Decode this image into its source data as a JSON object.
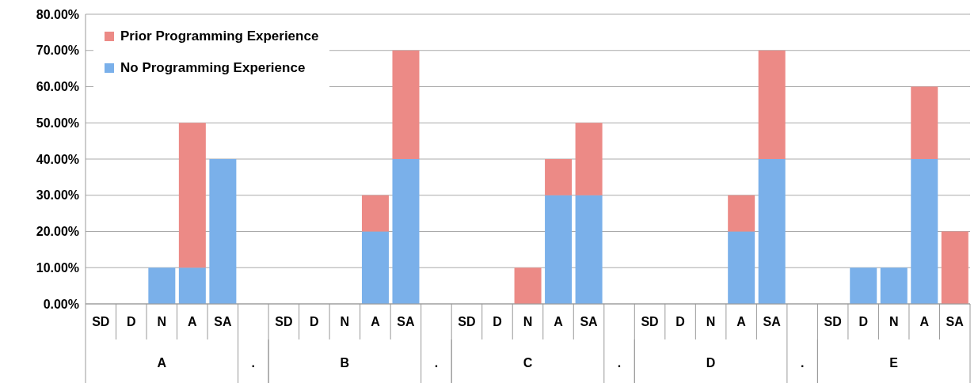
{
  "chart_data": {
    "type": "bar",
    "stacked": true,
    "categories": [
      "SD",
      "D",
      "N",
      "A",
      "SA",
      null,
      "SD",
      "D",
      "N",
      "A",
      "SA",
      null,
      "SD",
      "D",
      "N",
      "A",
      "SA",
      null,
      "SD",
      "D",
      "N",
      "A",
      "SA",
      null,
      "SD",
      "D",
      "N",
      "A",
      "SA"
    ],
    "series": [
      {
        "name": "No Programming Experience",
        "color": "#7ab0ea",
        "values": [
          0,
          0,
          10,
          10,
          40,
          null,
          0,
          0,
          0,
          20,
          40,
          null,
          0,
          0,
          0,
          30,
          30,
          null,
          0,
          0,
          0,
          20,
          40,
          null,
          0,
          10,
          10,
          40,
          0
        ]
      },
      {
        "name": "Prior Programming Experience",
        "color": "#ec8a86",
        "values": [
          0,
          0,
          0,
          40,
          0,
          null,
          0,
          0,
          0,
          10,
          30,
          null,
          0,
          0,
          10,
          10,
          20,
          null,
          0,
          0,
          0,
          10,
          30,
          null,
          0,
          0,
          0,
          20,
          20
        ]
      }
    ],
    "annotations": [
      "A",
      ".",
      "B",
      ".",
      "C",
      ".",
      "D",
      ".",
      "E"
    ],
    "ylim": [
      0,
      80
    ],
    "yticks": [
      {
        "value": 0,
        "label": "0.00%"
      },
      {
        "value": 10,
        "label": "10.00%"
      },
      {
        "value": 20,
        "label": "20.00%"
      },
      {
        "value": 30,
        "label": "30.00%"
      },
      {
        "value": 40,
        "label": "40.00%"
      },
      {
        "value": 50,
        "label": "50.00%"
      },
      {
        "value": 60,
        "label": "60.00%"
      },
      {
        "value": 70,
        "label": "70.00%"
      },
      {
        "value": 80,
        "label": "80.00%"
      }
    ],
    "grid": "y",
    "legend": "top left"
  }
}
